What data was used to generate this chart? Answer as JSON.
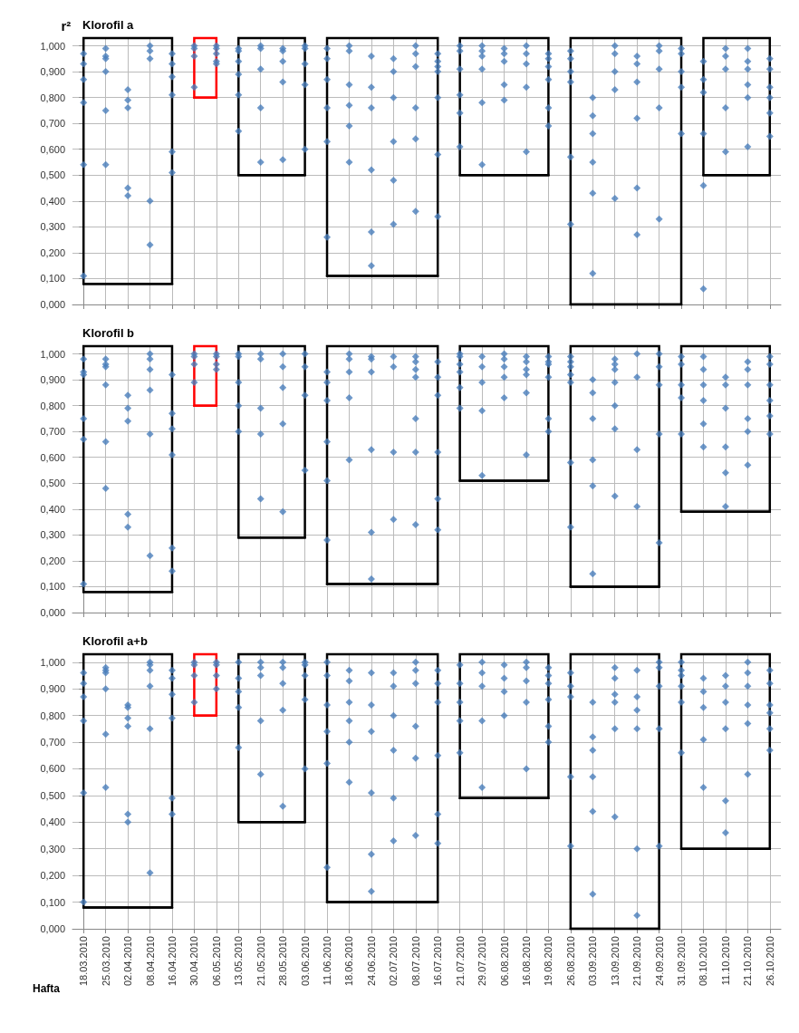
{
  "chart_data": [
    {
      "type": "scatter",
      "title": "Klorofil a",
      "ylabel": "r²",
      "categories": [
        "18.03.2010",
        "25.03.2010",
        "02.04.2010",
        "08.04.2010",
        "16.04.2010",
        "30.04.2010",
        "06.05.2010",
        "13.05.2010",
        "21.05.2010",
        "28.05.2010",
        "03.06.2010",
        "11.06.2010",
        "18.06.2010",
        "24.06.2010",
        "02.07.2010",
        "08.07.2010",
        "16.07.2010",
        "21.07.2010",
        "29.07.2010",
        "06.08.2010",
        "16.08.2010",
        "19.08.2010",
        "26.08.2010",
        "03.09.2010",
        "13.09.2010",
        "21.09.2010",
        "24.09.2010",
        "31.09.2010",
        "08.10.2010",
        "11.10.2010",
        "21.10.2010",
        "26.10.2010"
      ],
      "ylim": [
        0,
        1.03
      ],
      "yticks": [
        {
          "value": 0,
          "label": "0,000"
        },
        {
          "value": 0.1,
          "label": "0,100"
        },
        {
          "value": 0.2,
          "label": "0,200"
        },
        {
          "value": 0.3,
          "label": "0,300"
        },
        {
          "value": 0.4,
          "label": "0,400"
        },
        {
          "value": 0.5,
          "label": "0,500"
        },
        {
          "value": 0.6,
          "label": "0,600"
        },
        {
          "value": 0.7,
          "label": "0,700"
        },
        {
          "value": 0.8,
          "label": "0,800"
        },
        {
          "value": 0.9,
          "label": "0,900"
        },
        {
          "value": 1,
          "label": "1,000"
        }
      ],
      "grid": true,
      "marker": "diamond",
      "tick_labels": "y",
      "series": [
        {
          "color": "#4a7ebb",
          "values": [
            0.97,
            0.99,
            0.83,
            1,
            0.97,
            1,
            1,
            0.99,
            1,
            0.99,
            1,
            0.99,
            1,
            0.96,
            0.95,
            1,
            0.97,
            1,
            1,
            0.99,
            1,
            0.97,
            0.98,
            0.8,
            1,
            0.96,
            1,
            0.99,
            0.94,
            0.99,
            0.99,
            0.95
          ]
        },
        {
          "color": "#4a7ebb",
          "values": [
            0.93,
            0.96,
            0.79,
            0.98,
            0.93,
            0.99,
            0.99,
            0.98,
            0.99,
            0.98,
            0.99,
            0.95,
            0.98,
            0.84,
            0.9,
            0.97,
            0.94,
            0.98,
            0.98,
            0.97,
            0.97,
            0.95,
            0.95,
            0.73,
            0.97,
            0.93,
            0.98,
            0.97,
            0.87,
            0.96,
            0.94,
            0.91
          ]
        },
        {
          "color": "#4a7ebb",
          "values": [
            0.87,
            0.95,
            0.76,
            0.95,
            0.88,
            0.96,
            0.97,
            0.94,
            0.91,
            0.94,
            0.93,
            0.87,
            0.85,
            0.76,
            0.8,
            0.92,
            0.92,
            0.91,
            0.96,
            0.94,
            0.93,
            0.92,
            0.9,
            0.66,
            0.9,
            0.86,
            0.91,
            0.9,
            0.82,
            0.91,
            0.91,
            0.84
          ]
        },
        {
          "color": "#4a7ebb",
          "values": [
            0.78,
            0.9,
            0.45,
            0.4,
            0.81,
            0.84,
            0.94,
            0.89,
            0.76,
            0.86,
            0.85,
            0.76,
            0.77,
            0.52,
            0.63,
            0.76,
            0.9,
            0.81,
            0.91,
            0.85,
            0.84,
            0.87,
            0.86,
            0.55,
            0.83,
            0.72,
            0.76,
            0.84,
            0.66,
            0.76,
            0.85,
            0.8
          ]
        },
        {
          "color": "#4a7ebb",
          "values": [
            0.54,
            0.75,
            0.42,
            0.23,
            0.59,
            null,
            0.93,
            0.81,
            0.55,
            0.56,
            0.6,
            0.63,
            0.69,
            0.28,
            0.48,
            0.64,
            0.8,
            0.74,
            0.78,
            0.79,
            0.59,
            0.76,
            0.57,
            0.43,
            0.41,
            0.45,
            0.33,
            0.66,
            0.46,
            0.59,
            0.8,
            0.74
          ]
        },
        {
          "color": "#4a7ebb",
          "values": [
            0.11,
            0.54,
            null,
            null,
            0.51,
            null,
            null,
            0.67,
            null,
            null,
            null,
            0.26,
            0.55,
            0.15,
            0.31,
            0.36,
            0.58,
            0.61,
            0.54,
            null,
            null,
            0.69,
            0.31,
            0.12,
            null,
            0.27,
            null,
            null,
            0.06,
            null,
            0.61,
            0.65
          ]
        },
        {
          "color": "#4a7ebb",
          "values": [
            null,
            null,
            null,
            null,
            null,
            null,
            null,
            null,
            null,
            null,
            null,
            null,
            null,
            null,
            null,
            null,
            0.34,
            null,
            null,
            null,
            null,
            null,
            null,
            null,
            null,
            null,
            null,
            null,
            null,
            null,
            null,
            null
          ]
        },
        {
          "type": "line",
          "marker": "none",
          "color": "#000000",
          "x": [
            "18.03.2010",
            "16.04.2010"
          ],
          "values": [
            0.08,
            0.08
          ]
        },
        {
          "type": "line",
          "marker": "none",
          "color": "#000000",
          "x": [
            "13.05.2010",
            "03.06.2010"
          ],
          "values": [
            0.5,
            0.5
          ]
        },
        {
          "type": "line",
          "marker": "none",
          "color": "#000000",
          "x": [
            "11.06.2010",
            "16.07.2010"
          ],
          "values": [
            0.11,
            0.11
          ]
        },
        {
          "type": "line",
          "marker": "none",
          "color": "#000000",
          "x": [
            "21.07.2010",
            "19.08.2010"
          ],
          "values": [
            0.5,
            0.5
          ]
        },
        {
          "type": "line",
          "marker": "none",
          "color": "#000000",
          "x": [
            "26.08.2010",
            "31.09.2010"
          ],
          "values": [
            0,
            0
          ]
        },
        {
          "type": "line",
          "marker": "none",
          "color": "#000000",
          "x": [
            "08.10.2010",
            "26.10.2010"
          ],
          "values": [
            0.5,
            0.5
          ]
        },
        {
          "type": "line",
          "marker": "none",
          "color": "#ff0000",
          "x": [
            "30.04.2010",
            "06.05.2010"
          ],
          "values": [
            0.8,
            0.8
          ]
        }
      ]
    },
    {
      "type": "scatter",
      "title": "Klorofil b",
      "categories": [
        "18.03.2010",
        "25.03.2010",
        "02.04.2010",
        "08.04.2010",
        "16.04.2010",
        "30.04.2010",
        "06.05.2010",
        "13.05.2010",
        "21.05.2010",
        "28.05.2010",
        "03.06.2010",
        "11.06.2010",
        "18.06.2010",
        "24.06.2010",
        "02.07.2010",
        "08.07.2010",
        "16.07.2010",
        "21.07.2010",
        "29.07.2010",
        "06.08.2010",
        "16.08.2010",
        "19.08.2010",
        "26.08.2010",
        "03.09.2010",
        "13.09.2010",
        "21.09.2010",
        "24.09.2010",
        "31.09.2010",
        "08.10.2010",
        "11.10.2010",
        "21.10.2010",
        "26.10.2010"
      ],
      "ylim": [
        0,
        1.03
      ],
      "yticks": [
        {
          "value": 0,
          "label": "0,000"
        },
        {
          "value": 0.1,
          "label": "0,100"
        },
        {
          "value": 0.2,
          "label": "0,200"
        },
        {
          "value": 0.3,
          "label": "0,300"
        },
        {
          "value": 0.4,
          "label": "0,400"
        },
        {
          "value": 0.5,
          "label": "0,500"
        },
        {
          "value": 0.6,
          "label": "0,600"
        },
        {
          "value": 0.7,
          "label": "0,700"
        },
        {
          "value": 0.8,
          "label": "0,800"
        },
        {
          "value": 0.9,
          "label": "0,900"
        },
        {
          "value": 1,
          "label": "1,000"
        }
      ],
      "grid": true,
      "marker": "diamond",
      "tick_labels": "y",
      "series": [
        {
          "color": "#4a7ebb",
          "values": [
            0.98,
            0.98,
            0.84,
            1,
            0.92,
            1,
            1,
            1,
            1,
            1,
            1,
            0.93,
            1,
            0.99,
            0.99,
            0.99,
            0.97,
            1,
            0.99,
            1,
            0.99,
            0.99,
            0.99,
            0.9,
            0.98,
            1,
            1,
            0.99,
            0.99,
            0.91,
            0.97,
            0.99
          ]
        },
        {
          "color": "#4a7ebb",
          "values": [
            0.93,
            0.96,
            0.79,
            0.98,
            0.77,
            0.99,
            0.99,
            0.99,
            0.98,
            0.95,
            0.95,
            0.89,
            0.98,
            0.98,
            0.95,
            0.97,
            0.91,
            0.99,
            0.95,
            0.98,
            0.97,
            0.97,
            0.97,
            0.85,
            0.96,
            0.91,
            0.95,
            0.96,
            0.94,
            0.88,
            0.94,
            0.96
          ]
        },
        {
          "color": "#4a7ebb",
          "values": [
            0.92,
            0.95,
            0.74,
            0.94,
            0.71,
            0.96,
            0.96,
            0.89,
            0.79,
            0.87,
            0.84,
            0.82,
            0.93,
            0.93,
            0.62,
            0.94,
            0.84,
            0.96,
            0.89,
            0.95,
            0.94,
            0.96,
            0.95,
            0.75,
            0.94,
            0.63,
            0.88,
            0.88,
            0.88,
            0.79,
            0.88,
            0.88
          ]
        },
        {
          "color": "#4a7ebb",
          "values": [
            0.75,
            0.88,
            0.38,
            0.86,
            0.61,
            0.89,
            0.94,
            0.8,
            0.69,
            0.73,
            0.55,
            0.66,
            0.83,
            0.63,
            0.36,
            0.91,
            0.62,
            0.93,
            0.78,
            0.91,
            0.92,
            0.91,
            0.92,
            0.59,
            0.89,
            0.41,
            0.69,
            0.83,
            0.82,
            0.64,
            0.75,
            0.82
          ]
        },
        {
          "color": "#4a7ebb",
          "values": [
            0.67,
            0.66,
            0.33,
            0.69,
            0.25,
            null,
            null,
            0.7,
            0.44,
            0.39,
            null,
            0.51,
            0.59,
            0.31,
            null,
            0.75,
            0.44,
            0.87,
            0.53,
            0.83,
            0.85,
            0.75,
            0.89,
            0.49,
            0.8,
            null,
            0.27,
            0.69,
            0.73,
            0.54,
            0.7,
            0.76
          ]
        },
        {
          "color": "#4a7ebb",
          "values": [
            0.11,
            0.48,
            null,
            0.22,
            0.16,
            null,
            null,
            null,
            null,
            null,
            null,
            0.28,
            null,
            0.13,
            null,
            0.62,
            0.32,
            0.79,
            null,
            null,
            0.61,
            0.7,
            0.58,
            0.15,
            0.71,
            null,
            null,
            null,
            0.64,
            0.41,
            0.57,
            0.69
          ]
        },
        {
          "color": "#4a7ebb",
          "values": [
            null,
            null,
            null,
            null,
            null,
            null,
            null,
            null,
            null,
            null,
            null,
            null,
            null,
            null,
            null,
            0.34,
            null,
            null,
            null,
            null,
            null,
            null,
            0.33,
            null,
            0.45,
            null,
            null,
            null,
            null,
            null,
            null,
            null
          ]
        },
        {
          "type": "line",
          "marker": "none",
          "color": "#000000",
          "x": [
            "18.03.2010",
            "16.04.2010"
          ],
          "values": [
            0.08,
            0.08
          ]
        },
        {
          "type": "line",
          "marker": "none",
          "color": "#000000",
          "x": [
            "13.05.2010",
            "03.06.2010"
          ],
          "values": [
            0.29,
            0.29
          ]
        },
        {
          "type": "line",
          "marker": "none",
          "color": "#000000",
          "x": [
            "11.06.2010",
            "16.07.2010"
          ],
          "values": [
            0.11,
            0.11
          ]
        },
        {
          "type": "line",
          "marker": "none",
          "color": "#000000",
          "x": [
            "21.07.2010",
            "19.08.2010"
          ],
          "values": [
            0.51,
            0.51
          ]
        },
        {
          "type": "line",
          "marker": "none",
          "color": "#000000",
          "x": [
            "26.08.2010",
            "24.09.2010"
          ],
          "values": [
            0.1,
            0.1
          ]
        },
        {
          "type": "line",
          "marker": "none",
          "color": "#000000",
          "x": [
            "31.09.2010",
            "26.10.2010"
          ],
          "values": [
            0.39,
            0.39
          ]
        },
        {
          "type": "line",
          "marker": "none",
          "color": "#ff0000",
          "x": [
            "30.04.2010",
            "06.05.2010"
          ],
          "values": [
            0.8,
            0.8
          ]
        }
      ]
    },
    {
      "type": "scatter",
      "title": "Klorofil a+b",
      "xlabel": "Hafta",
      "categories": [
        "18.03.2010",
        "25.03.2010",
        "02.04.2010",
        "08.04.2010",
        "16.04.2010",
        "30.04.2010",
        "06.05.2010",
        "13.05.2010",
        "21.05.2010",
        "28.05.2010",
        "03.06.2010",
        "11.06.2010",
        "18.06.2010",
        "24.06.2010",
        "02.07.2010",
        "08.07.2010",
        "16.07.2010",
        "21.07.2010",
        "29.07.2010",
        "06.08.2010",
        "16.08.2010",
        "19.08.2010",
        "26.08.2010",
        "03.09.2010",
        "13.09.2010",
        "21.09.2010",
        "24.09.2010",
        "31.09.2010",
        "08.10.2010",
        "11.10.2010",
        "21.10.2010",
        "26.10.2010"
      ],
      "ylim": [
        0,
        1.03
      ],
      "yticks": [
        {
          "value": 0,
          "label": "0,000"
        },
        {
          "value": 0.1,
          "label": "0,100"
        },
        {
          "value": 0.2,
          "label": "0,200"
        },
        {
          "value": 0.3,
          "label": "0,300"
        },
        {
          "value": 0.4,
          "label": "0,400"
        },
        {
          "value": 0.5,
          "label": "0,500"
        },
        {
          "value": 0.6,
          "label": "0,600"
        },
        {
          "value": 0.7,
          "label": "0,700"
        },
        {
          "value": 0.8,
          "label": "0,800"
        },
        {
          "value": 0.9,
          "label": "0,900"
        },
        {
          "value": 1,
          "label": "1,000"
        }
      ],
      "grid": true,
      "marker": "diamond",
      "series": [
        {
          "color": "#4a7ebb",
          "values": [
            0.96,
            0.98,
            0.84,
            1,
            0.97,
            1,
            1,
            1,
            1,
            1,
            1,
            1,
            0.97,
            0.96,
            0.96,
            1,
            0.97,
            0.99,
            1,
            0.99,
            1,
            0.98,
            0.96,
            0.85,
            0.98,
            0.97,
            1,
            1,
            0.94,
            0.95,
            1,
            0.97
          ]
        },
        {
          "color": "#4a7ebb",
          "values": [
            0.92,
            0.97,
            0.83,
            0.99,
            0.94,
            0.99,
            0.99,
            0.94,
            0.98,
            0.98,
            0.99,
            0.95,
            0.93,
            0.84,
            0.91,
            0.97,
            0.92,
            0.92,
            0.96,
            0.94,
            0.98,
            0.95,
            0.91,
            0.72,
            0.94,
            0.87,
            0.98,
            0.97,
            0.89,
            0.91,
            0.96,
            0.92
          ]
        },
        {
          "color": "#4a7ebb",
          "values": [
            0.87,
            0.96,
            0.79,
            0.97,
            0.88,
            0.95,
            0.95,
            0.89,
            0.95,
            0.92,
            0.95,
            0.84,
            0.85,
            0.74,
            0.8,
            0.92,
            0.85,
            0.85,
            0.91,
            0.89,
            0.93,
            0.92,
            0.87,
            0.67,
            0.88,
            0.82,
            0.91,
            0.95,
            0.83,
            0.85,
            0.91,
            0.84
          ]
        },
        {
          "color": "#4a7ebb",
          "values": [
            0.78,
            0.9,
            0.76,
            0.91,
            0.79,
            0.85,
            0.9,
            0.83,
            0.78,
            0.82,
            0.86,
            0.74,
            0.78,
            0.51,
            0.67,
            0.76,
            0.65,
            0.78,
            0.78,
            0.8,
            0.85,
            0.86,
            0.57,
            0.57,
            0.85,
            0.75,
            0.75,
            0.91,
            0.71,
            0.75,
            0.84,
            0.81
          ]
        },
        {
          "color": "#4a7ebb",
          "values": [
            0.51,
            0.73,
            0.43,
            0.75,
            0.49,
            null,
            null,
            0.68,
            0.58,
            0.46,
            0.6,
            0.62,
            0.7,
            0.28,
            0.49,
            0.64,
            0.43,
            0.66,
            0.53,
            null,
            0.6,
            0.76,
            0.31,
            0.44,
            0.75,
            0.3,
            0.31,
            0.85,
            0.53,
            0.48,
            0.77,
            0.75
          ]
        },
        {
          "color": "#4a7ebb",
          "values": [
            0.1,
            0.53,
            0.4,
            0.21,
            0.43,
            null,
            null,
            null,
            null,
            null,
            null,
            0.23,
            0.55,
            0.14,
            0.33,
            0.35,
            0.32,
            null,
            null,
            null,
            null,
            0.7,
            null,
            0.13,
            0.42,
            0.05,
            null,
            0.66,
            null,
            0.36,
            0.58,
            0.67
          ]
        },
        {
          "type": "line",
          "marker": "none",
          "color": "#000000",
          "x": [
            "18.03.2010",
            "16.04.2010"
          ],
          "values": [
            0.08,
            0.08
          ]
        },
        {
          "type": "line",
          "marker": "none",
          "color": "#000000",
          "x": [
            "13.05.2010",
            "03.06.2010"
          ],
          "values": [
            0.4,
            0.4
          ]
        },
        {
          "type": "line",
          "marker": "none",
          "color": "#000000",
          "x": [
            "11.06.2010",
            "16.07.2010"
          ],
          "values": [
            0.1,
            0.1
          ]
        },
        {
          "type": "line",
          "marker": "none",
          "color": "#000000",
          "x": [
            "21.07.2010",
            "19.08.2010"
          ],
          "values": [
            0.49,
            0.49
          ]
        },
        {
          "type": "line",
          "marker": "none",
          "color": "#000000",
          "x": [
            "26.08.2010",
            "24.09.2010"
          ],
          "values": [
            0,
            0
          ]
        },
        {
          "type": "line",
          "marker": "none",
          "color": "#000000",
          "x": [
            "31.09.2010",
            "26.10.2010"
          ],
          "values": [
            0.3,
            0.3
          ]
        },
        {
          "type": "line",
          "marker": "none",
          "color": "#ff0000",
          "x": [
            "30.04.2010",
            "06.05.2010"
          ],
          "values": [
            0.8,
            0.8
          ]
        }
      ]
    }
  ]
}
